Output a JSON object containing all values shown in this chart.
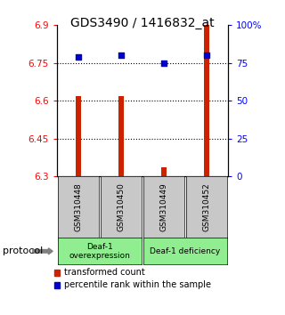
{
  "title": "GDS3490 / 1416832_at",
  "samples": [
    "GSM310448",
    "GSM310450",
    "GSM310449",
    "GSM310452"
  ],
  "red_values": [
    6.62,
    6.62,
    6.335,
    6.9
  ],
  "blue_values": [
    79,
    80,
    75,
    80
  ],
  "ylim_left": [
    6.3,
    6.9
  ],
  "ylim_right": [
    0,
    100
  ],
  "yticks_left": [
    6.3,
    6.45,
    6.6,
    6.75,
    6.9
  ],
  "ytick_labels_left": [
    "6.3",
    "6.45",
    "6.6",
    "6.75",
    "6.9"
  ],
  "yticks_right": [
    0,
    25,
    50,
    75,
    100
  ],
  "ytick_labels_right": [
    "0",
    "25",
    "50",
    "75",
    "100%"
  ],
  "bar_color": "#CC2200",
  "dot_color": "#0000CC",
  "bar_width": 0.12,
  "protocol_label": "protocol",
  "legend_red": "transformed count",
  "legend_blue": "percentile rank within the sample",
  "background_sample": "#C8C8C8",
  "group_configs": [
    {
      "indices": [
        0,
        1
      ],
      "label": "Deaf-1\noverexpression",
      "color": "#90EE90"
    },
    {
      "indices": [
        2,
        3
      ],
      "label": "Deaf-1 deficiency",
      "color": "#90EE90"
    }
  ],
  "title_fontsize": 10,
  "tick_fontsize": 7.5,
  "sample_fontsize": 6.5,
  "group_fontsize": 6.5,
  "legend_fontsize": 7,
  "protocol_fontsize": 8
}
